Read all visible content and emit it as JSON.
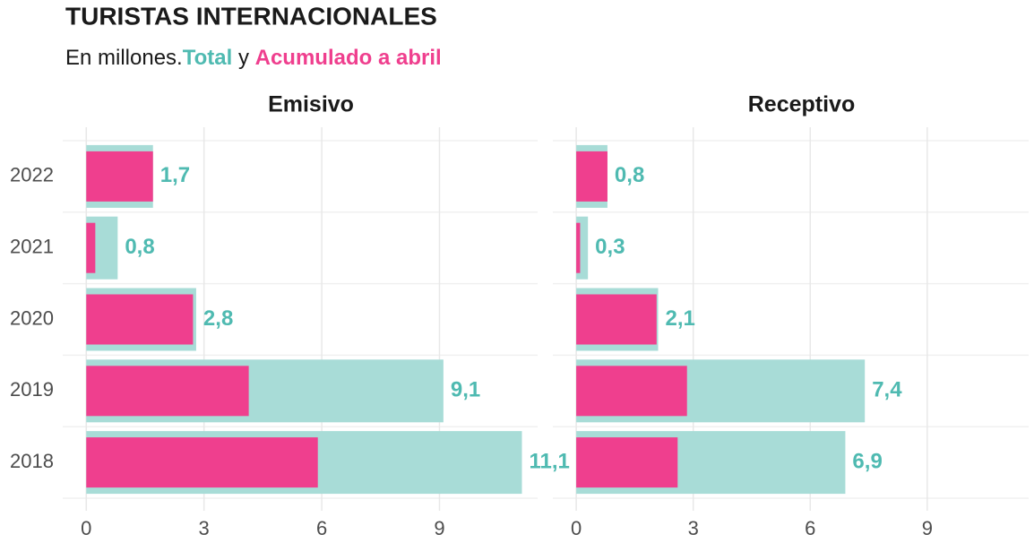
{
  "title": "TURISTAS INTERNACIONALES",
  "subtitle_lead": "En millones.",
  "subtitle_join": " y ",
  "categories": [
    "2022",
    "2021",
    "2020",
    "2019",
    "2018"
  ],
  "label_color": "#4fbab1",
  "chart_data": [
    {
      "type": "bar",
      "orientation": "horizontal",
      "title": "Emisivo",
      "series": [
        {
          "name": "Total",
          "color": "#a8dcd7",
          "values": [
            1.7,
            0.8,
            2.8,
            9.1,
            11.1
          ],
          "value_labels": [
            "1,7",
            "0,8",
            "2,8",
            "9,1",
            "11,1"
          ]
        },
        {
          "name": "Acumulado a abril",
          "color": "#ef3f8e",
          "values": [
            1.7,
            0.23,
            2.72,
            4.14,
            5.9
          ]
        }
      ],
      "xlim": [
        -0.6,
        11.5
      ],
      "xticks": [
        0,
        3,
        6,
        9
      ],
      "grid": true
    },
    {
      "type": "bar",
      "orientation": "horizontal",
      "title": "Receptivo",
      "series": [
        {
          "color": "#a8dcd7",
          "values": [
            0.8,
            0.3,
            2.1,
            7.4,
            6.9
          ],
          "value_labels": [
            "0,8",
            "0,3",
            "2,1",
            "7,4",
            "6,9"
          ]
        },
        {
          "color": "#ef3f8e",
          "values": [
            0.8,
            0.1,
            2.06,
            2.84,
            2.6
          ]
        }
      ],
      "xlim": [
        -0.6,
        11.6
      ],
      "xticks": [
        0,
        3,
        6,
        9
      ],
      "grid": true
    }
  ]
}
